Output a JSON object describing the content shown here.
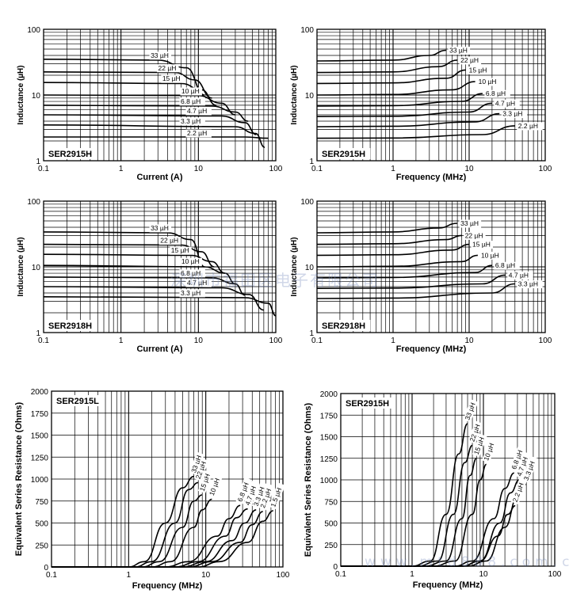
{
  "theme": {
    "grid": "#000000",
    "curve": "#000000",
    "label_bg": "#ffffff"
  },
  "watermark": {
    "text1": "深圳市福田区电子有限公司",
    "text2": "www.mtd888.com.cn"
  },
  "chart_data": [
    {
      "type": "line",
      "title": "SER2915H",
      "xlabel": "Current (A)",
      "ylabel": "Inductance (µH)",
      "x_scale": "log",
      "y_scale": "log",
      "xlim": [
        0.1,
        100
      ],
      "ylim": [
        1,
        100
      ],
      "x_ticks": [
        "0.1",
        "1",
        "10",
        "100"
      ],
      "y_ticks": [
        "1",
        "10",
        "100"
      ],
      "series": [
        {
          "name": "33 µH",
          "x": [
            0.1,
            3,
            7,
            12
          ],
          "y": [
            35,
            34,
            26,
            10
          ]
        },
        {
          "name": "22 µH",
          "x": [
            0.1,
            5,
            9,
            15
          ],
          "y": [
            22.5,
            22,
            17,
            9
          ]
        },
        {
          "name": "15 µH",
          "x": [
            0.1,
            6,
            11,
            17
          ],
          "y": [
            15.5,
            15,
            12,
            7
          ]
        },
        {
          "name": "10 µH",
          "x": [
            0.1,
            10,
            20,
            30
          ],
          "y": [
            10,
            9.8,
            7.5,
            5
          ]
        },
        {
          "name": "6.8 µH",
          "x": [
            0.1,
            15,
            30,
            44
          ],
          "y": [
            7,
            6.8,
            5.5,
            4
          ]
        },
        {
          "name": "4.7 µH",
          "x": [
            0.1,
            20,
            40,
            56
          ],
          "y": [
            5,
            4.8,
            3.8,
            2.5
          ]
        },
        {
          "name": "3.3 µH",
          "x": [
            0.1,
            30,
            55,
            72
          ],
          "y": [
            3.5,
            3.3,
            2.6,
            1.6
          ]
        },
        {
          "name": "2.2 µH",
          "x": [
            0.1,
            40,
            80
          ],
          "y": [
            2.3,
            2.3,
            2.2
          ]
        }
      ]
    },
    {
      "type": "line",
      "title": "SER2915H",
      "xlabel": "Frequency (MHz)",
      "ylabel": "Inductance (µH)",
      "x_scale": "log",
      "y_scale": "log",
      "xlim": [
        0.1,
        100
      ],
      "ylim": [
        1,
        100
      ],
      "x_ticks": [
        "0.1",
        "1",
        "10",
        "100"
      ],
      "y_ticks": [
        "1",
        "10",
        "100"
      ],
      "series": [
        {
          "name": "33 µH",
          "x": [
            0.1,
            1,
            3,
            5
          ],
          "y": [
            33,
            34,
            40,
            48
          ]
        },
        {
          "name": "22 µH",
          "x": [
            0.1,
            1,
            4,
            7
          ],
          "y": [
            22,
            22.5,
            27,
            34
          ]
        },
        {
          "name": "15 µH",
          "x": [
            0.1,
            1,
            5,
            9
          ],
          "y": [
            15,
            15.3,
            18,
            24
          ]
        },
        {
          "name": "10 µH",
          "x": [
            0.1,
            1,
            6,
            12
          ],
          "y": [
            10,
            10.2,
            12,
            16
          ]
        },
        {
          "name": "6.8 µH",
          "x": [
            0.1,
            1,
            8,
            15
          ],
          "y": [
            6.8,
            6.9,
            8,
            10.5
          ]
        },
        {
          "name": "4.7 µH",
          "x": [
            0.1,
            1,
            10,
            20
          ],
          "y": [
            4.7,
            4.75,
            5.5,
            7.5
          ]
        },
        {
          "name": "3.3 µH",
          "x": [
            0.1,
            1,
            12,
            25
          ],
          "y": [
            3.3,
            3.35,
            3.9,
            5.2
          ]
        },
        {
          "name": "2.2 µH",
          "x": [
            0.1,
            1,
            15,
            40
          ],
          "y": [
            2.2,
            2.22,
            2.5,
            3.4
          ]
        }
      ]
    },
    {
      "type": "line",
      "title": "SER2918H",
      "xlabel": "Current (A)",
      "ylabel": "Inductance (µH)",
      "x_scale": "log",
      "y_scale": "log",
      "xlim": [
        0.1,
        100
      ],
      "ylim": [
        1,
        100
      ],
      "x_ticks": [
        "0.1",
        "1",
        "10",
        "100"
      ],
      "y_ticks": [
        "1",
        "10",
        "100"
      ],
      "series": [
        {
          "name": "33 µH",
          "x": [
            0.1,
            4,
            8,
            12
          ],
          "y": [
            34,
            33,
            26,
            10
          ]
        },
        {
          "name": "22 µH",
          "x": [
            0.1,
            6,
            11,
            16
          ],
          "y": [
            22,
            21.5,
            17,
            10
          ]
        },
        {
          "name": "15 µH",
          "x": [
            0.1,
            8,
            15,
            22
          ],
          "y": [
            15.5,
            15,
            12,
            8
          ]
        },
        {
          "name": "10 µH",
          "x": [
            0.1,
            12,
            22,
            30
          ],
          "y": [
            10.5,
            10,
            8,
            5.5
          ]
        },
        {
          "name": "6.8 µH",
          "x": [
            0.1,
            15,
            30,
            40
          ],
          "y": [
            7,
            6.8,
            5.5,
            3.7
          ]
        },
        {
          "name": "4.7 µH",
          "x": [
            0.1,
            20,
            45,
            70
          ],
          "y": [
            5,
            4.8,
            3.8,
            2.2
          ]
        },
        {
          "name": "3.3 µH",
          "x": [
            0.1,
            40,
            80,
            100
          ],
          "y": [
            3.5,
            3.4,
            2.8,
            1.8
          ]
        }
      ]
    },
    {
      "type": "line",
      "title": "SER2918H",
      "xlabel": "Frequency (MHz)",
      "ylabel": "Inductance (µH)",
      "x_scale": "log",
      "y_scale": "log",
      "xlim": [
        0.1,
        100
      ],
      "ylim": [
        1,
        100
      ],
      "x_ticks": [
        "0.1",
        "1",
        "10",
        "100"
      ],
      "y_ticks": [
        "1",
        "10",
        "100"
      ],
      "series": [
        {
          "name": "33 µH",
          "x": [
            0.1,
            1,
            4,
            7
          ],
          "y": [
            33,
            34,
            39,
            46
          ]
        },
        {
          "name": "22 µH",
          "x": [
            0.1,
            1,
            5,
            8
          ],
          "y": [
            22,
            22.5,
            26,
            30
          ]
        },
        {
          "name": "15 µH",
          "x": [
            0.1,
            1,
            6,
            10
          ],
          "y": [
            15,
            15.3,
            18,
            22
          ]
        },
        {
          "name": "10 µH",
          "x": [
            0.1,
            1,
            8,
            13
          ],
          "y": [
            10,
            10.2,
            12,
            15
          ]
        },
        {
          "name": "6.8 µH",
          "x": [
            0.1,
            1,
            12,
            20
          ],
          "y": [
            6.8,
            6.9,
            8.2,
            10.5
          ]
        },
        {
          "name": "4.7 µH",
          "x": [
            0.1,
            1,
            15,
            30
          ],
          "y": [
            4.7,
            4.75,
            5.5,
            7.5
          ]
        },
        {
          "name": "3.3 µH",
          "x": [
            0.1,
            1,
            20,
            40
          ],
          "y": [
            3.3,
            3.35,
            4,
            5.5
          ]
        }
      ]
    },
    {
      "type": "line",
      "title": "SER2915L",
      "xlabel": "Frequency (MHz)",
      "ylabel": "Equivalent Series Resistance (Ohms)",
      "x_scale": "log",
      "y_scale": "linear",
      "xlim": [
        0.1,
        100
      ],
      "ylim": [
        0,
        2000
      ],
      "x_ticks": [
        "0.1",
        "1",
        "10",
        "100"
      ],
      "y_ticks": [
        "0",
        "250",
        "500",
        "750",
        "1000",
        "1250",
        "1500",
        "1750",
        "2000"
      ],
      "series": [
        {
          "name": "33 µH",
          "x": [
            0.1,
            1,
            1.6,
            3,
            5,
            7
          ],
          "y": [
            0,
            0,
            60,
            500,
            900,
            1030
          ]
        },
        {
          "name": "22 µH",
          "x": [
            0.1,
            1.2,
            2,
            4,
            6,
            8
          ],
          "y": [
            0,
            0,
            60,
            500,
            880,
            960
          ]
        },
        {
          "name": "15 µH",
          "x": [
            0.1,
            1.5,
            2.5,
            5,
            7,
            9
          ],
          "y": [
            0,
            0,
            60,
            450,
            750,
            820
          ]
        },
        {
          "name": "10 µH",
          "x": [
            0.1,
            2,
            3.5,
            7,
            9,
            12
          ],
          "y": [
            0,
            0,
            60,
            450,
            650,
            770
          ]
        },
        {
          "name": "6.8 µH",
          "x": [
            0.1,
            3,
            6,
            14,
            20,
            28
          ],
          "y": [
            0,
            0,
            60,
            350,
            550,
            700
          ]
        },
        {
          "name": "4.7 µH",
          "x": [
            0.1,
            4,
            8,
            18,
            25,
            35
          ],
          "y": [
            0,
            0,
            60,
            350,
            560,
            660
          ]
        },
        {
          "name": "3.3 µH",
          "x": [
            0.1,
            5,
            10,
            22,
            32,
            45
          ],
          "y": [
            0,
            0,
            60,
            300,
            500,
            650
          ]
        },
        {
          "name": "2.2 µH",
          "x": [
            0.1,
            6,
            12,
            28,
            40,
            55
          ],
          "y": [
            0,
            0,
            60,
            280,
            480,
            630
          ]
        },
        {
          "name": "1.5 µH",
          "x": [
            0.1,
            8,
            15,
            35,
            55,
            75
          ],
          "y": [
            0,
            0,
            60,
            280,
            520,
            640
          ]
        }
      ]
    },
    {
      "type": "line",
      "title": "SER2915H",
      "xlabel": "Frequency (MHz)",
      "ylabel": "Equivalent Series Resistance (Ohms)",
      "x_scale": "log",
      "y_scale": "linear",
      "xlim": [
        0.1,
        100
      ],
      "ylim": [
        0,
        2000
      ],
      "x_ticks": [
        "0.1",
        "1",
        "10",
        "100"
      ],
      "y_ticks": [
        "0",
        "250",
        "500",
        "750",
        "1000",
        "1250",
        "1500",
        "1750",
        "2000"
      ],
      "series": [
        {
          "name": "33 µH",
          "x": [
            0.1,
            1,
            1.8,
            3,
            4.5,
            6
          ],
          "y": [
            0,
            0,
            60,
            600,
            1300,
            1650
          ]
        },
        {
          "name": "22 µH",
          "x": [
            0.1,
            1.2,
            2.3,
            3.8,
            5.5,
            7
          ],
          "y": [
            0,
            0,
            60,
            600,
            1200,
            1400
          ]
        },
        {
          "name": "15 µH",
          "x": [
            0.1,
            1.5,
            3,
            5,
            6.5,
            8
          ],
          "y": [
            0,
            0,
            60,
            550,
            1050,
            1250
          ]
        },
        {
          "name": "10 µH",
          "x": [
            0.1,
            2,
            4,
            7,
            9,
            11
          ],
          "y": [
            0,
            0,
            60,
            600,
            1000,
            1180
          ]
        },
        {
          "name": "6.8 µH",
          "x": [
            0.1,
            4,
            7,
            14,
            20,
            27
          ],
          "y": [
            0,
            0,
            60,
            550,
            900,
            1080
          ]
        },
        {
          "name": "4.7 µH",
          "x": [
            0.1,
            5,
            9,
            17,
            24,
            32
          ],
          "y": [
            0,
            0,
            60,
            500,
            850,
            1000
          ]
        },
        {
          "name": "3.3 µH",
          "x": [
            0.1,
            6,
            11,
            20,
            30,
            40
          ],
          "y": [
            0,
            0,
            60,
            450,
            800,
            950
          ]
        },
        {
          "name": "2.2 µH",
          "x": [
            0.1,
            5,
            9,
            16,
            22,
            28
          ],
          "y": [
            0,
            0,
            60,
            350,
            600,
            700
          ]
        }
      ]
    }
  ]
}
